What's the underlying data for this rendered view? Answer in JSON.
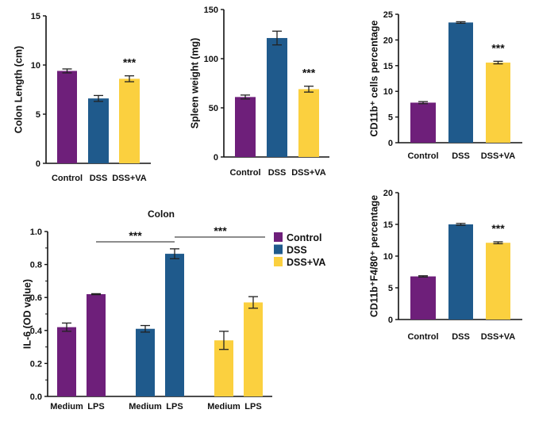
{
  "colors": {
    "Control": "#6E1F7A",
    "DSS": "#1F5A8C",
    "DSS+VA": "#FBD03F"
  },
  "chart_data": [
    {
      "type": "bar",
      "ylabel": "Colon Length (cm)",
      "categories": [
        "Control",
        "DSS",
        "DSS+VA"
      ],
      "values": [
        9.4,
        6.6,
        8.6
      ],
      "errors": [
        0.2,
        0.3,
        0.3
      ],
      "ylim": [
        0,
        15
      ],
      "yticks": [
        0,
        5,
        10,
        15
      ],
      "significance": [
        "",
        "",
        "***"
      ]
    },
    {
      "type": "bar",
      "ylabel": "Spleen weight (mg)",
      "categories": [
        "Control",
        "DSS",
        "DSS+VA"
      ],
      "values": [
        61,
        121,
        69
      ],
      "errors": [
        2,
        7,
        3
      ],
      "ylim": [
        0,
        150
      ],
      "yticks": [
        0,
        50,
        100,
        150
      ],
      "significance": [
        "",
        "",
        "***"
      ]
    },
    {
      "type": "bar",
      "ylabel": "CD11b⁺ cells percentage",
      "categories": [
        "Control",
        "DSS",
        "DSS+VA"
      ],
      "values": [
        7.8,
        23.4,
        15.6
      ],
      "errors": [
        0.2,
        0.15,
        0.25
      ],
      "ylim": [
        0,
        25
      ],
      "yticks": [
        0,
        5,
        10,
        15,
        20,
        25
      ],
      "significance": [
        "",
        "",
        "***"
      ]
    },
    {
      "type": "bar",
      "ylabel": "CD11b⁺F4/80⁺ percentage",
      "categories": [
        "Control",
        "DSS",
        "DSS+VA"
      ],
      "values": [
        6.8,
        15.0,
        12.1
      ],
      "errors": [
        0.1,
        0.15,
        0.15
      ],
      "ylim": [
        0,
        20
      ],
      "yticks": [
        0,
        5,
        10,
        15,
        20
      ],
      "significance": [
        "",
        "",
        "***"
      ]
    },
    {
      "type": "bar",
      "title": "Colon",
      "ylabel": "IL-6 (OD value)",
      "categories": [
        "Medium",
        "LPS",
        "Medium",
        "LPS",
        "Medium",
        "LPS"
      ],
      "groups": [
        "Control",
        "Control",
        "DSS",
        "DSS",
        "DSS+VA",
        "DSS+VA"
      ],
      "values": [
        0.42,
        0.62,
        0.41,
        0.865,
        0.34,
        0.57
      ],
      "errors": [
        0.025,
        0.003,
        0.02,
        0.03,
        0.055,
        0.035
      ],
      "ylim": [
        0,
        1.0
      ],
      "yticks": [
        "0.0",
        "0.2",
        "0.4",
        "0.6",
        "0.8",
        "1.0"
      ],
      "legend": {
        "entries": [
          "Control",
          "DSS",
          "DSS+VA"
        ],
        "placement": "right"
      },
      "comparisons": [
        {
          "from": 1,
          "to": 3,
          "label": "***"
        },
        {
          "from": 3,
          "to": 5,
          "label": "***"
        }
      ]
    }
  ]
}
